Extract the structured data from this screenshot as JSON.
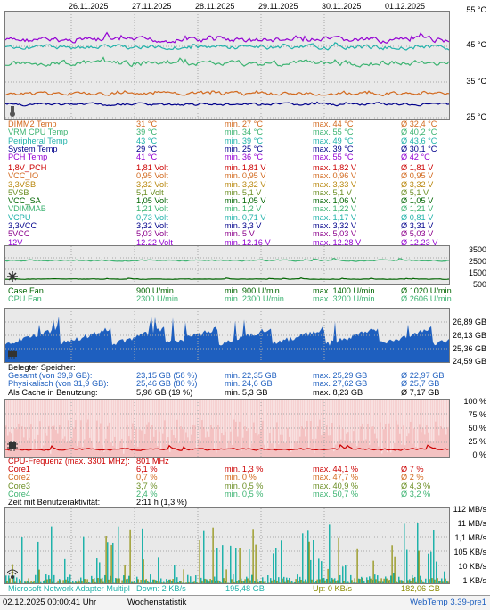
{
  "dates": [
    "26.11.2025",
    "27.11.2025",
    "28.11.2025",
    "29.11.2025",
    "30.11.2025",
    "01.12.2025"
  ],
  "temp": {
    "axis": [
      "55 °C",
      "45 °C",
      "35 °C",
      "25 °C"
    ],
    "rows": [
      {
        "name": "DIMM2 Temp",
        "cur": "31 °C",
        "min": "min. 27 °C",
        "max": "max. 44 °C",
        "avg": "Ø 32,4 °C",
        "color": "#d2691e"
      },
      {
        "name": "VRM CPU Temp",
        "cur": "39 °C",
        "min": "min. 34 °C",
        "max": "max. 55 °C",
        "avg": "Ø 40,2 °C",
        "color": "#3cb371"
      },
      {
        "name": "Peripheral Temp",
        "cur": "43 °C",
        "min": "min. 39 °C",
        "max": "max. 49 °C",
        "avg": "Ø 43,6 °C",
        "color": "#20b2aa"
      },
      {
        "name": "System Temp",
        "cur": "29 °C",
        "min": "min. 25 °C",
        "max": "max. 39 °C",
        "avg": "Ø 30,1 °C",
        "color": "#00008b"
      },
      {
        "name": "PCH Temp",
        "cur": "41 °C",
        "min": "min. 36 °C",
        "max": "max. 55 °C",
        "avg": "Ø 42 °C",
        "color": "#9400d3"
      }
    ]
  },
  "volt": {
    "rows": [
      {
        "name": "1,8V_PCH",
        "cur": "1,81 Volt",
        "min": "min. 1,81 V",
        "max": "max. 1,82 V",
        "avg": "Ø 1,81 V",
        "color": "#cc0000"
      },
      {
        "name": "VCC_IO",
        "cur": "0,95 Volt",
        "min": "min. 0,95 V",
        "max": "max. 0,96 V",
        "avg": "Ø 0,95 V",
        "color": "#d2691e"
      },
      {
        "name": "3,3VSB",
        "cur": "3,32 Volt",
        "min": "min. 3,32 V",
        "max": "max. 3,33 V",
        "avg": "Ø 3,32 V",
        "color": "#b8860b"
      },
      {
        "name": "5VSB",
        "cur": "5,1 Volt",
        "min": "min. 5,1 V",
        "max": "max. 5,1 V",
        "avg": "Ø 5,1 V",
        "color": "#6b8e23"
      },
      {
        "name": "VCC_SA",
        "cur": "1,05 Volt",
        "min": "min. 1,05 V",
        "max": "max. 1,06 V",
        "avg": "Ø 1,05 V",
        "color": "#006400"
      },
      {
        "name": "VDIMMAB",
        "cur": "1,21 Volt",
        "min": "min. 1,2 V",
        "max": "max. 1,22 V",
        "avg": "Ø 1,21 V",
        "color": "#3cb371"
      },
      {
        "name": "VCPU",
        "cur": "0,73 Volt",
        "min": "min. 0,71 V",
        "max": "max. 1,17 V",
        "avg": "Ø 0,81 V",
        "color": "#20b2aa"
      },
      {
        "name": "3,3VCC",
        "cur": "3,32 Volt",
        "min": "min. 3,3 V",
        "max": "max. 3,32 V",
        "avg": "Ø 3,31 V",
        "color": "#00008b"
      },
      {
        "name": "5VCC",
        "cur": "5,03 Volt",
        "min": "min. 5 V",
        "max": "max. 5,03 V",
        "avg": "Ø 5,03 V",
        "color": "#8b008b"
      },
      {
        "name": "12V",
        "cur": "12,22 Volt",
        "min": "min. 12,16 V",
        "max": "max. 12,28 V",
        "avg": "Ø 12,23 V",
        "color": "#9400d3"
      }
    ]
  },
  "fan": {
    "axis": [
      "3500",
      "2500",
      "1500",
      "500"
    ],
    "rows": [
      {
        "name": "Case Fan",
        "cur": "900 U/min.",
        "min": "min. 900 U/min.",
        "max": "max. 1400 U/min.",
        "avg": "Ø 1020 U/min.",
        "color": "#006400"
      },
      {
        "name": "CPU Fan",
        "cur": "2300 U/min.",
        "min": "min. 2300 U/min.",
        "max": "max. 3200 U/min.",
        "avg": "Ø 2606 U/min.",
        "color": "#3cb371"
      }
    ]
  },
  "mem": {
    "axis": [
      "26,89 GB",
      "26,13 GB",
      "25,36 GB",
      "24,59 GB"
    ],
    "header": "Belegter Speicher:",
    "rows": [
      {
        "name": "Gesamt (von 39,9 GB):",
        "cur": "23,15 GB (58 %)",
        "min": "min. 22,35 GB",
        "max": "max. 25,29 GB",
        "avg": "Ø 22,97 GB",
        "color": "#1e5fbf"
      },
      {
        "name": "Physikalisch (von 31,9 GB):",
        "cur": "25,46 GB (80 %)",
        "min": "min. 24,6 GB",
        "max": "max. 27,62 GB",
        "avg": "Ø 25,7 GB",
        "color": "#1e5fbf"
      },
      {
        "name": "Als Cache in Benutzung:",
        "cur": "5,98 GB (19 %)",
        "min": "min. 5,3 GB",
        "max": "max. 8,23 GB",
        "avg": "Ø 7,17 GB",
        "color": "#000000"
      }
    ]
  },
  "cpu": {
    "axis": [
      "100 %",
      "75 %",
      "50 %",
      "25 %",
      "0 %"
    ],
    "freq_label": "CPU-Frequenz (max. 3301 MHz):",
    "freq_value": "801 MHz",
    "rows": [
      {
        "name": "Core1",
        "cur": "6,1 %",
        "min": "min. 1,3 %",
        "max": "max. 44,1 %",
        "avg": "Ø 7 %",
        "color": "#cc0000"
      },
      {
        "name": "Core2",
        "cur": "0,7 %",
        "min": "min. 0 %",
        "max": "max. 47,7 %",
        "avg": "Ø 2 %",
        "color": "#d2691e"
      },
      {
        "name": "Core3",
        "cur": "3,7 %",
        "min": "min. 0,5 %",
        "max": "max. 40,9 %",
        "avg": "Ø 4,3 %",
        "color": "#6b8e23"
      },
      {
        "name": "Core4",
        "cur": "2,4 %",
        "min": "min. 0,5 %",
        "max": "max. 50,7 %",
        "avg": "Ø 3,2 %",
        "color": "#3cb371"
      }
    ],
    "user_label": "Zeit mit Benutzeraktivität:",
    "user_value": "2:11 h (1,3 %)"
  },
  "net": {
    "axis": [
      "112 MB/s",
      "11 MB/s",
      "1,1 MB/s",
      "105 KB/s",
      "10 KB/s",
      "1 KB/s"
    ],
    "adapter": "Microsoft Network Adapter Multipl",
    "down": "Down: 2 KB/s",
    "down_total": "195,48 GB",
    "up": "Up: 0 KB/s",
    "up_total": "182,06 GB"
  },
  "status": {
    "datetime": "02.12.2025 00:00:41 Uhr",
    "mode": "Wochenstatistik",
    "version": "WebTemp 3.39-pre1"
  }
}
